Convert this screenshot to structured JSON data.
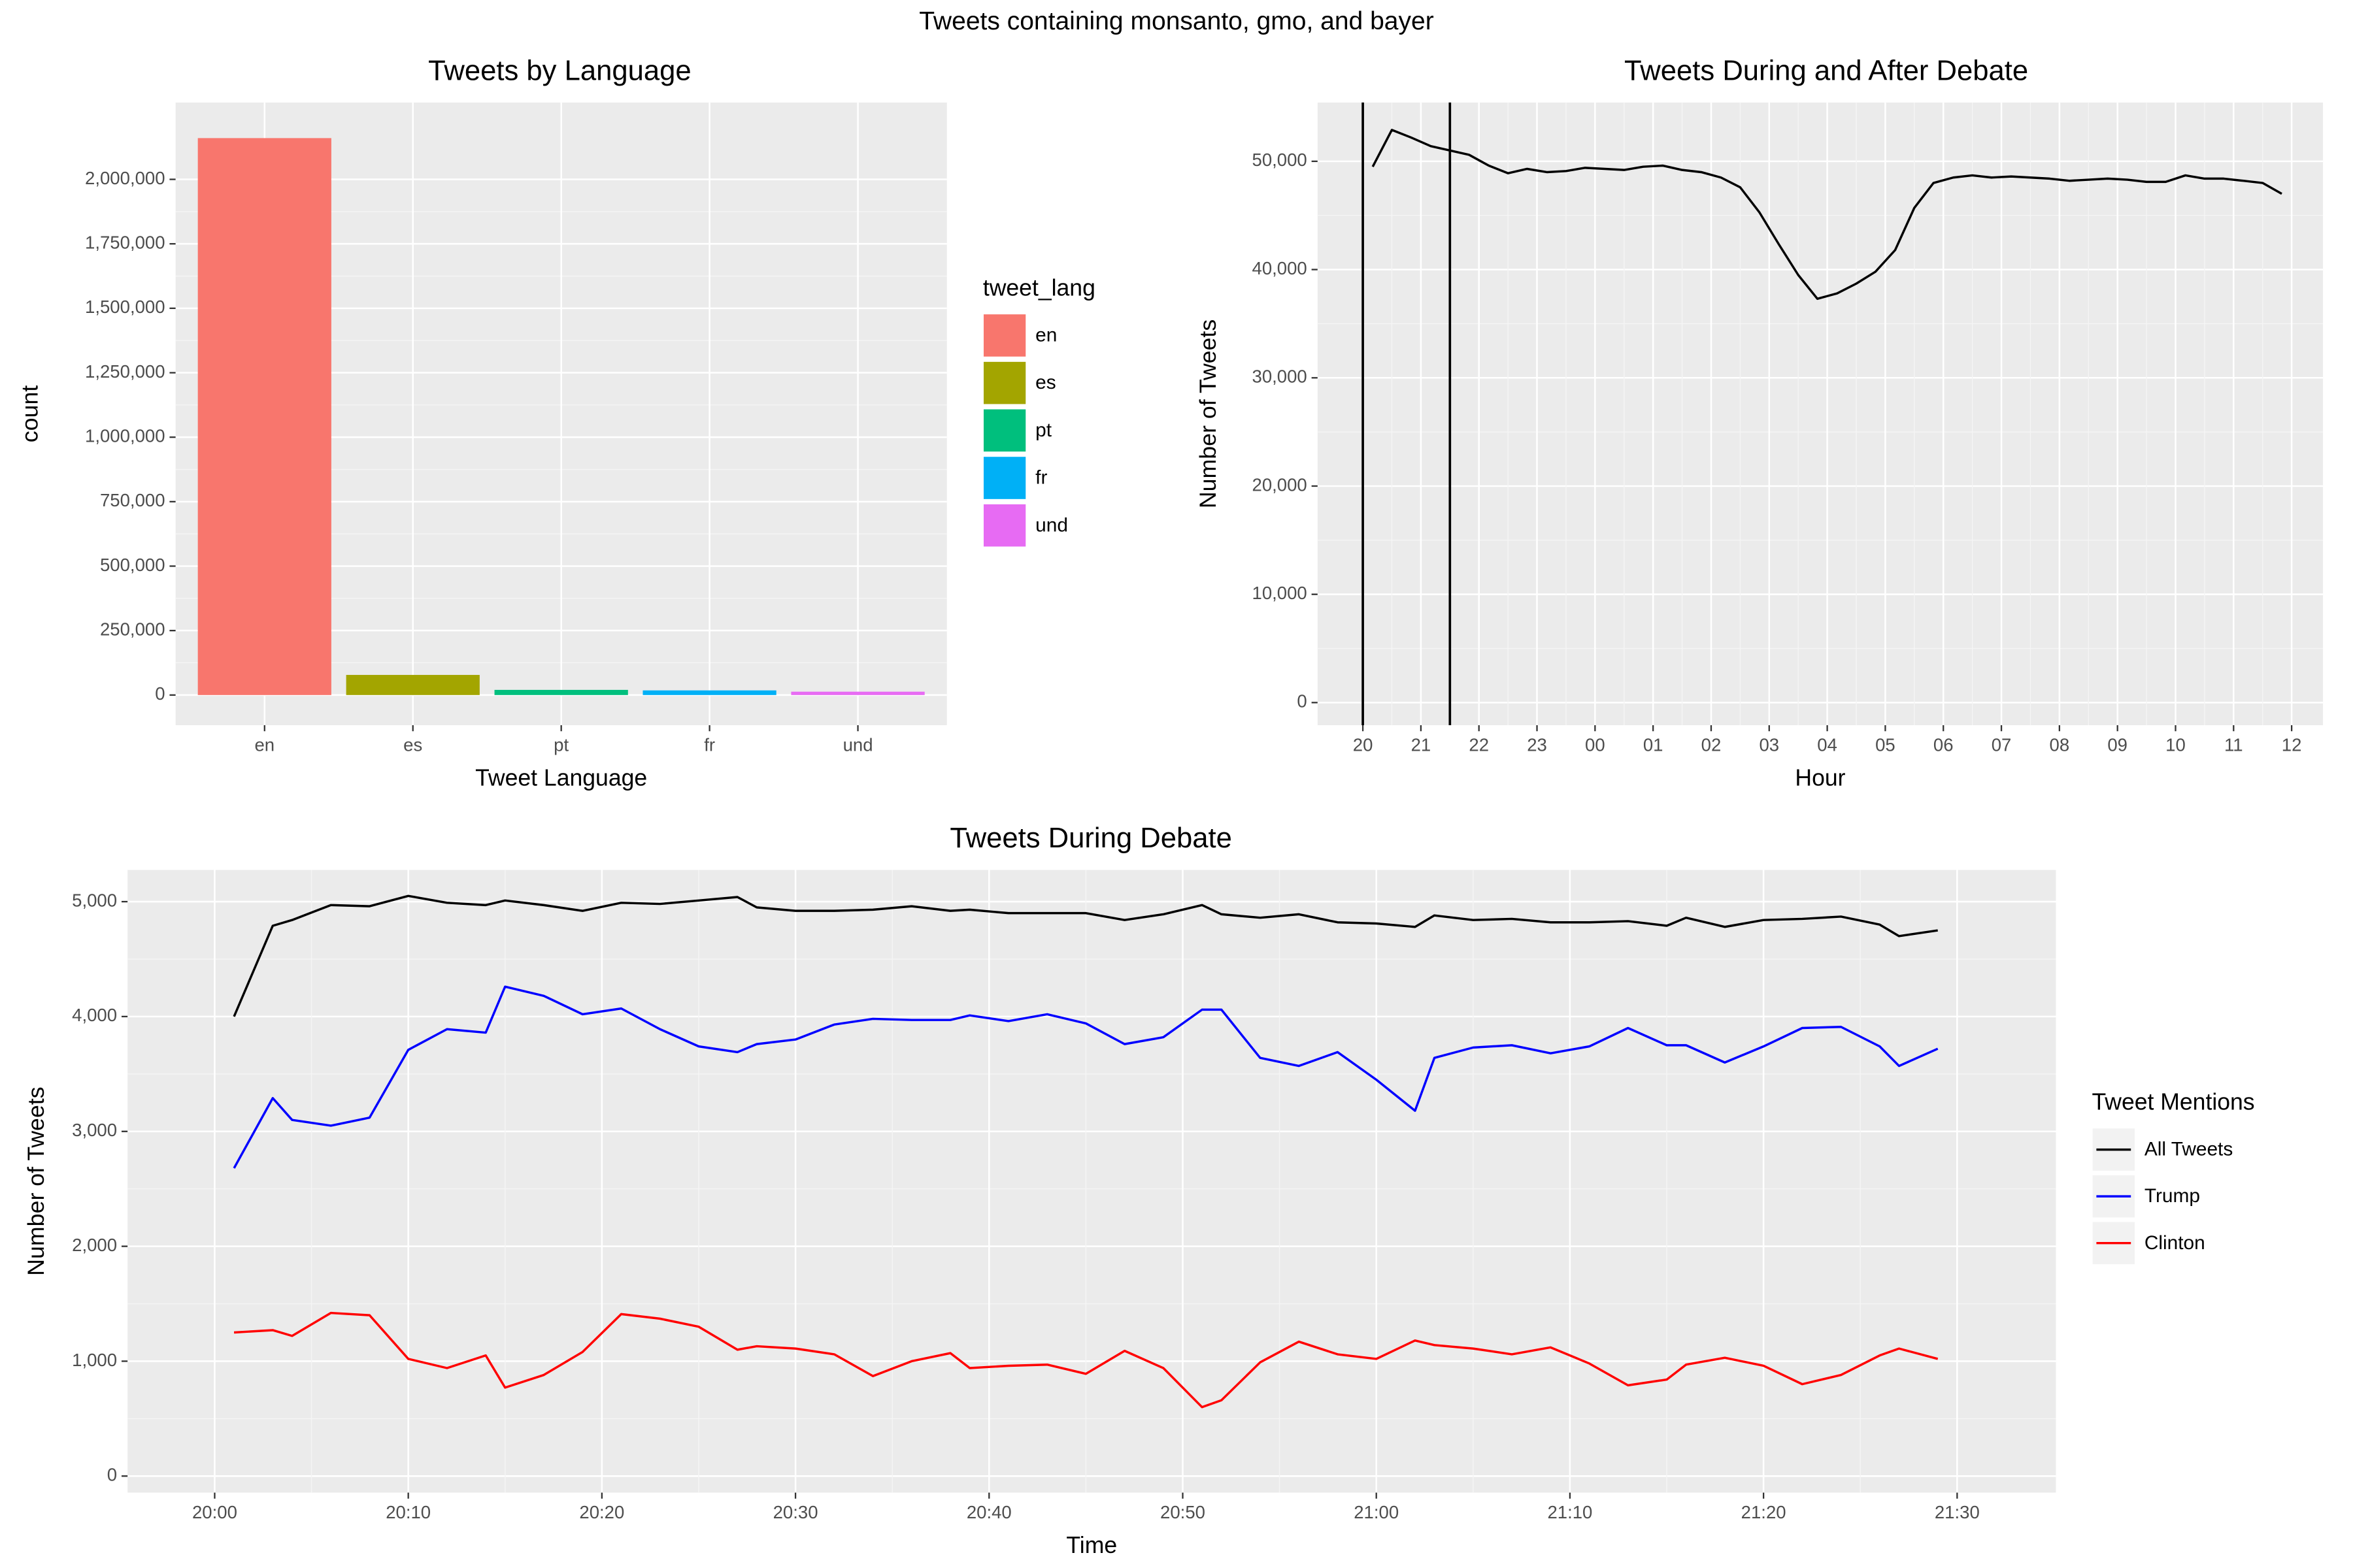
{
  "title": "Tweets containing monsanto, gmo, and bayer",
  "chart_data": [
    {
      "type": "bar",
      "title": "Tweets by Language",
      "x_label": "Tweet Language",
      "y_label": "count",
      "categories": [
        "en",
        "es",
        "pt",
        "fr",
        "und"
      ],
      "values": [
        2160000,
        78000,
        20000,
        18000,
        13000
      ],
      "colors": [
        "#f8766d",
        "#a3a500",
        "#00bf7d",
        "#00b0f6",
        "#e76bf3"
      ],
      "legend_title": "tweet_lang",
      "ylim": [
        -117000,
        2298000
      ],
      "yticks": [
        0,
        {
          "value": 250000,
          "label": "250,000"
        },
        {
          "value": 500000,
          "label": "500,000"
        },
        {
          "value": 750000,
          "label": "750,000"
        },
        {
          "value": 1000000,
          "label": "1,000,000"
        },
        {
          "value": 1250000,
          "label": "1,250,000"
        },
        {
          "value": 1500000,
          "label": "1,500,000"
        },
        {
          "value": 1750000,
          "label": "1,750,000"
        },
        {
          "value": 2000000,
          "label": "2,000,000"
        }
      ],
      "grid": true
    },
    {
      "type": "line",
      "title": "Tweets During and After Debate",
      "x_label": "Hour",
      "y_label": "Number of Tweets",
      "x": [
        20.17,
        20.5,
        20.83,
        21.17,
        21.5,
        21.83,
        22.17,
        22.5,
        22.83,
        23.17,
        23.5,
        23.83,
        24.17,
        24.5,
        24.83,
        25.17,
        25.5,
        25.83,
        26.17,
        26.5,
        26.83,
        27.17,
        27.5,
        27.83,
        28.17,
        28.5,
        28.83,
        29.17,
        29.5,
        29.83,
        30.17,
        30.5,
        30.83,
        31.17,
        31.5,
        31.83,
        32.17,
        32.5,
        32.83,
        33.17,
        33.5,
        33.83,
        34.17,
        34.5,
        34.83,
        35.17,
        35.5,
        35.83
      ],
      "series": [
        {
          "color": "#000000",
          "values": [
            49500,
            52900,
            52200,
            51400,
            51000,
            50600,
            49600,
            48900,
            49300,
            49000,
            49100,
            49400,
            49300,
            49200,
            49500,
            49600,
            49200,
            49000,
            48500,
            47600,
            45300,
            42300,
            39500,
            37300,
            37800,
            38700,
            39800,
            41800,
            45700,
            48000,
            48500,
            48700,
            48500,
            48600,
            48500,
            48400,
            48200,
            48300,
            48400,
            48300,
            48100,
            48100,
            48700,
            48400,
            48400,
            48200,
            48000,
            47000
          ]
        }
      ],
      "vlines": [
        20,
        21.5
      ],
      "xlim": [
        19.22,
        36.54
      ],
      "xticks": [
        20,
        21,
        22,
        23,
        {
          "value": 24,
          "label": "00"
        },
        {
          "value": 25,
          "label": "01"
        },
        {
          "value": 26,
          "label": "02"
        },
        {
          "value": 27,
          "label": "03"
        },
        {
          "value": 28,
          "label": "04"
        },
        {
          "value": 29,
          "label": "05"
        },
        {
          "value": 30,
          "label": "06"
        },
        {
          "value": 31,
          "label": "07"
        },
        {
          "value": 32,
          "label": "08"
        },
        {
          "value": 33,
          "label": "09"
        },
        {
          "value": 34,
          "label": "10"
        },
        {
          "value": 35,
          "label": "11"
        },
        {
          "value": 36,
          "label": "12"
        }
      ],
      "ylim": [
        -2090,
        55430
      ],
      "yticks": [
        0,
        {
          "value": 10000,
          "label": "10,000"
        },
        {
          "value": 20000,
          "label": "20,000"
        },
        {
          "value": 30000,
          "label": "30,000"
        },
        {
          "value": 40000,
          "label": "40,000"
        },
        {
          "value": 50000,
          "label": "50,000"
        }
      ],
      "grid": true
    },
    {
      "type": "line",
      "title": "Tweets During Debate",
      "x_label": "Time",
      "y_label": "Number of Tweets",
      "x": [
        "20:01",
        "20:03",
        "20:04",
        "20:06",
        "20:08",
        "20:10",
        "20:12",
        "20:14",
        "20:15",
        "20:17",
        "20:19",
        "20:21",
        "20:23",
        "20:25",
        "20:27",
        "20:28",
        "20:30",
        "20:32",
        "20:34",
        "20:36",
        "20:38",
        "20:39",
        "20:41",
        "20:43",
        "20:45",
        "20:47",
        "20:49",
        "20:51",
        "20:52",
        "20:54",
        "20:56",
        "20:58",
        "21:00",
        "21:02",
        "21:03",
        "21:05",
        "21:07",
        "21:09",
        "21:11",
        "21:13",
        "21:15",
        "21:16",
        "21:18",
        "21:20",
        "21:22",
        "21:24",
        "21:26",
        "21:27",
        "21:29"
      ],
      "series": [
        {
          "name": "All Tweets",
          "color": "#000000",
          "values": [
            4000,
            4790,
            4840,
            4970,
            4960,
            5050,
            4990,
            4970,
            5010,
            4970,
            4920,
            4990,
            4980,
            5010,
            5040,
            4950,
            4920,
            4920,
            4930,
            4960,
            4920,
            4930,
            4900,
            4900,
            4900,
            4840,
            4890,
            4970,
            4890,
            4860,
            4890,
            4820,
            4810,
            4780,
            4880,
            4840,
            4850,
            4820,
            4820,
            4830,
            4790,
            4860,
            4780,
            4840,
            4850,
            4870,
            4800,
            4700,
            4750
          ]
        },
        {
          "name": "Trump",
          "color": "#0000ff",
          "values": [
            2680,
            3290,
            3100,
            3050,
            3120,
            3710,
            3890,
            3860,
            4260,
            4180,
            4020,
            4070,
            3890,
            3740,
            3690,
            3760,
            3800,
            3930,
            3980,
            3970,
            3970,
            4010,
            3960,
            4020,
            3940,
            3760,
            3820,
            4060,
            4060,
            3640,
            3570,
            3690,
            3450,
            3180,
            3640,
            3730,
            3750,
            3680,
            3740,
            3900,
            3750,
            3750,
            3600,
            3740,
            3900,
            3910,
            3740,
            3570,
            3720
          ]
        },
        {
          "name": "Clinton",
          "color": "#ff0000",
          "values": [
            1250,
            1270,
            1220,
            1420,
            1400,
            1020,
            940,
            1050,
            770,
            880,
            1080,
            1410,
            1370,
            1300,
            1100,
            1130,
            1110,
            1060,
            870,
            1000,
            1070,
            940,
            960,
            970,
            890,
            1090,
            940,
            600,
            660,
            990,
            1170,
            1060,
            1020,
            1180,
            1140,
            1110,
            1060,
            1120,
            980,
            790,
            840,
            970,
            1030,
            960,
            800,
            880,
            1050,
            1110,
            1020
          ]
        }
      ],
      "legend_title": "Tweet Mentions",
      "xlim": [
        "19:55:30",
        "21:35:06"
      ],
      "xticks": [
        "20:00",
        "20:10",
        "20:20",
        "20:30",
        "20:40",
        "20:50",
        "21:00",
        "21:10",
        "21:20",
        "21:30"
      ],
      "ylim": [
        -144,
        5276
      ],
      "yticks": [
        0,
        {
          "value": 1000,
          "label": "1,000"
        },
        {
          "value": 2000,
          "label": "2,000"
        },
        {
          "value": 3000,
          "label": "3,000"
        },
        {
          "value": 4000,
          "label": "4,000"
        },
        {
          "value": 5000,
          "label": "5,000"
        }
      ],
      "grid": true
    }
  ]
}
